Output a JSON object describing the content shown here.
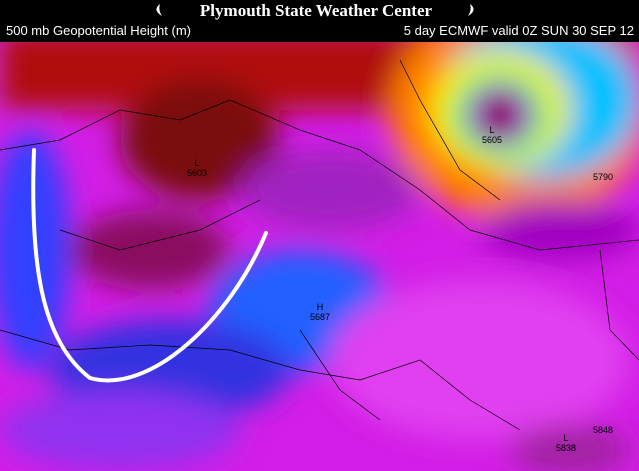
{
  "header": {
    "title": "Plymouth State Weather Center"
  },
  "subheader": {
    "field": "500 mb Geopotential Height (m)",
    "run": "5 day ECMWF valid 0Z SUN 30 SEP 12"
  },
  "labels": [
    {
      "mark": "L",
      "value": 5603
    },
    {
      "mark": "H",
      "value": 5687
    },
    {
      "mark": "L",
      "value": 5605
    },
    {
      "value": 5790
    },
    {
      "value": 5848
    },
    {
      "mark": "L",
      "value": 5838
    }
  ]
}
